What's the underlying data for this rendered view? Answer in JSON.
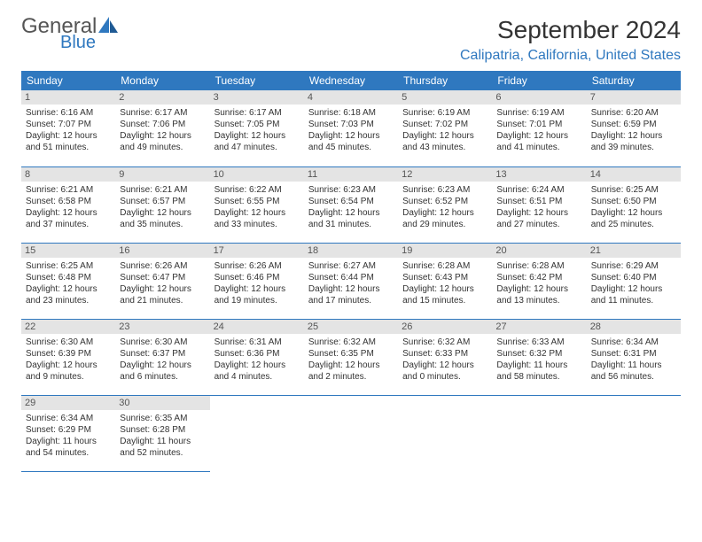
{
  "logo": {
    "general": "General",
    "blue": "Blue"
  },
  "title": "September 2024",
  "location": "Calipatria, California, United States",
  "colors": {
    "accent": "#2f78bf",
    "day_bg": "#e4e4e4",
    "text": "#333333",
    "background": "#ffffff"
  },
  "weekdays": [
    "Sunday",
    "Monday",
    "Tuesday",
    "Wednesday",
    "Thursday",
    "Friday",
    "Saturday"
  ],
  "days": [
    {
      "n": "1",
      "sunrise": "Sunrise: 6:16 AM",
      "sunset": "Sunset: 7:07 PM",
      "daylight": "Daylight: 12 hours and 51 minutes."
    },
    {
      "n": "2",
      "sunrise": "Sunrise: 6:17 AM",
      "sunset": "Sunset: 7:06 PM",
      "daylight": "Daylight: 12 hours and 49 minutes."
    },
    {
      "n": "3",
      "sunrise": "Sunrise: 6:17 AM",
      "sunset": "Sunset: 7:05 PM",
      "daylight": "Daylight: 12 hours and 47 minutes."
    },
    {
      "n": "4",
      "sunrise": "Sunrise: 6:18 AM",
      "sunset": "Sunset: 7:03 PM",
      "daylight": "Daylight: 12 hours and 45 minutes."
    },
    {
      "n": "5",
      "sunrise": "Sunrise: 6:19 AM",
      "sunset": "Sunset: 7:02 PM",
      "daylight": "Daylight: 12 hours and 43 minutes."
    },
    {
      "n": "6",
      "sunrise": "Sunrise: 6:19 AM",
      "sunset": "Sunset: 7:01 PM",
      "daylight": "Daylight: 12 hours and 41 minutes."
    },
    {
      "n": "7",
      "sunrise": "Sunrise: 6:20 AM",
      "sunset": "Sunset: 6:59 PM",
      "daylight": "Daylight: 12 hours and 39 minutes."
    },
    {
      "n": "8",
      "sunrise": "Sunrise: 6:21 AM",
      "sunset": "Sunset: 6:58 PM",
      "daylight": "Daylight: 12 hours and 37 minutes."
    },
    {
      "n": "9",
      "sunrise": "Sunrise: 6:21 AM",
      "sunset": "Sunset: 6:57 PM",
      "daylight": "Daylight: 12 hours and 35 minutes."
    },
    {
      "n": "10",
      "sunrise": "Sunrise: 6:22 AM",
      "sunset": "Sunset: 6:55 PM",
      "daylight": "Daylight: 12 hours and 33 minutes."
    },
    {
      "n": "11",
      "sunrise": "Sunrise: 6:23 AM",
      "sunset": "Sunset: 6:54 PM",
      "daylight": "Daylight: 12 hours and 31 minutes."
    },
    {
      "n": "12",
      "sunrise": "Sunrise: 6:23 AM",
      "sunset": "Sunset: 6:52 PM",
      "daylight": "Daylight: 12 hours and 29 minutes."
    },
    {
      "n": "13",
      "sunrise": "Sunrise: 6:24 AM",
      "sunset": "Sunset: 6:51 PM",
      "daylight": "Daylight: 12 hours and 27 minutes."
    },
    {
      "n": "14",
      "sunrise": "Sunrise: 6:25 AM",
      "sunset": "Sunset: 6:50 PM",
      "daylight": "Daylight: 12 hours and 25 minutes."
    },
    {
      "n": "15",
      "sunrise": "Sunrise: 6:25 AM",
      "sunset": "Sunset: 6:48 PM",
      "daylight": "Daylight: 12 hours and 23 minutes."
    },
    {
      "n": "16",
      "sunrise": "Sunrise: 6:26 AM",
      "sunset": "Sunset: 6:47 PM",
      "daylight": "Daylight: 12 hours and 21 minutes."
    },
    {
      "n": "17",
      "sunrise": "Sunrise: 6:26 AM",
      "sunset": "Sunset: 6:46 PM",
      "daylight": "Daylight: 12 hours and 19 minutes."
    },
    {
      "n": "18",
      "sunrise": "Sunrise: 6:27 AM",
      "sunset": "Sunset: 6:44 PM",
      "daylight": "Daylight: 12 hours and 17 minutes."
    },
    {
      "n": "19",
      "sunrise": "Sunrise: 6:28 AM",
      "sunset": "Sunset: 6:43 PM",
      "daylight": "Daylight: 12 hours and 15 minutes."
    },
    {
      "n": "20",
      "sunrise": "Sunrise: 6:28 AM",
      "sunset": "Sunset: 6:42 PM",
      "daylight": "Daylight: 12 hours and 13 minutes."
    },
    {
      "n": "21",
      "sunrise": "Sunrise: 6:29 AM",
      "sunset": "Sunset: 6:40 PM",
      "daylight": "Daylight: 12 hours and 11 minutes."
    },
    {
      "n": "22",
      "sunrise": "Sunrise: 6:30 AM",
      "sunset": "Sunset: 6:39 PM",
      "daylight": "Daylight: 12 hours and 9 minutes."
    },
    {
      "n": "23",
      "sunrise": "Sunrise: 6:30 AM",
      "sunset": "Sunset: 6:37 PM",
      "daylight": "Daylight: 12 hours and 6 minutes."
    },
    {
      "n": "24",
      "sunrise": "Sunrise: 6:31 AM",
      "sunset": "Sunset: 6:36 PM",
      "daylight": "Daylight: 12 hours and 4 minutes."
    },
    {
      "n": "25",
      "sunrise": "Sunrise: 6:32 AM",
      "sunset": "Sunset: 6:35 PM",
      "daylight": "Daylight: 12 hours and 2 minutes."
    },
    {
      "n": "26",
      "sunrise": "Sunrise: 6:32 AM",
      "sunset": "Sunset: 6:33 PM",
      "daylight": "Daylight: 12 hours and 0 minutes."
    },
    {
      "n": "27",
      "sunrise": "Sunrise: 6:33 AM",
      "sunset": "Sunset: 6:32 PM",
      "daylight": "Daylight: 11 hours and 58 minutes."
    },
    {
      "n": "28",
      "sunrise": "Sunrise: 6:34 AM",
      "sunset": "Sunset: 6:31 PM",
      "daylight": "Daylight: 11 hours and 56 minutes."
    },
    {
      "n": "29",
      "sunrise": "Sunrise: 6:34 AM",
      "sunset": "Sunset: 6:29 PM",
      "daylight": "Daylight: 11 hours and 54 minutes."
    },
    {
      "n": "30",
      "sunrise": "Sunrise: 6:35 AM",
      "sunset": "Sunset: 6:28 PM",
      "daylight": "Daylight: 11 hours and 52 minutes."
    }
  ]
}
